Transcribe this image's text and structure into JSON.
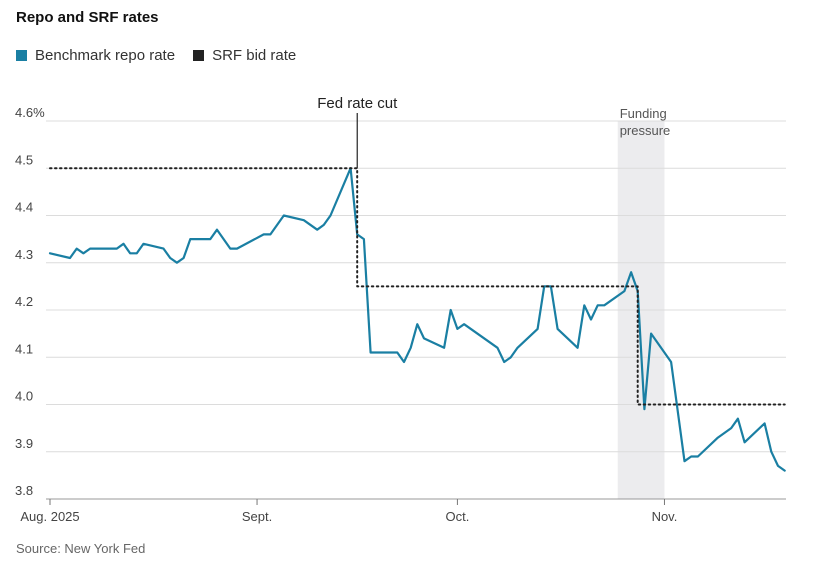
{
  "chart_data": {
    "type": "line",
    "title": "Repo and SRF rates",
    "legend": [
      {
        "name": "Benchmark repo rate",
        "color": "#1a7fa3"
      },
      {
        "name": "SRF bid rate",
        "color": "#222222"
      }
    ],
    "source": "Source: New York Fed",
    "ylim": [
      3.8,
      4.6
    ],
    "yticks": [
      {
        "value": 4.6,
        "label": "4.6%"
      },
      {
        "value": 4.5,
        "label": "4.5"
      },
      {
        "value": 4.4,
        "label": "4.4"
      },
      {
        "value": 4.3,
        "label": "4.3"
      },
      {
        "value": 4.2,
        "label": "4.2"
      },
      {
        "value": 4.1,
        "label": "4.1"
      },
      {
        "value": 4.0,
        "label": "4.0"
      },
      {
        "value": 3.9,
        "label": "3.9"
      },
      {
        "value": 3.8,
        "label": "3.8"
      }
    ],
    "xlim": [
      0,
      109
    ],
    "xticks": [
      {
        "day": 0,
        "label": "Aug. 2025"
      },
      {
        "day": 31,
        "label": "Sept."
      },
      {
        "day": 61,
        "label": "Oct."
      },
      {
        "day": 92,
        "label": "Nov."
      }
    ],
    "x_unit": "days since Aug. 1, 2025",
    "series": [
      {
        "name": "Benchmark repo rate",
        "color": "#1a7fa3",
        "points": [
          [
            0,
            4.32
          ],
          [
            3,
            4.31
          ],
          [
            4,
            4.33
          ],
          [
            5,
            4.32
          ],
          [
            6,
            4.33
          ],
          [
            10,
            4.33
          ],
          [
            11,
            4.34
          ],
          [
            12,
            4.32
          ],
          [
            13,
            4.32
          ],
          [
            14,
            4.34
          ],
          [
            17,
            4.33
          ],
          [
            18,
            4.31
          ],
          [
            19,
            4.3
          ],
          [
            20,
            4.31
          ],
          [
            21,
            4.35
          ],
          [
            24,
            4.35
          ],
          [
            25,
            4.37
          ],
          [
            27,
            4.33
          ],
          [
            28,
            4.33
          ],
          [
            32,
            4.36
          ],
          [
            33,
            4.36
          ],
          [
            35,
            4.4
          ],
          [
            38,
            4.39
          ],
          [
            40,
            4.37
          ],
          [
            41,
            4.38
          ],
          [
            42,
            4.4
          ],
          [
            45,
            4.5
          ],
          [
            46,
            4.36
          ],
          [
            47,
            4.35
          ],
          [
            48,
            4.11
          ],
          [
            52,
            4.11
          ],
          [
            53,
            4.09
          ],
          [
            54,
            4.12
          ],
          [
            55,
            4.17
          ],
          [
            56,
            4.14
          ],
          [
            59,
            4.12
          ],
          [
            60,
            4.2
          ],
          [
            61,
            4.16
          ],
          [
            62,
            4.17
          ],
          [
            67,
            4.12
          ],
          [
            68,
            4.09
          ],
          [
            69,
            4.1
          ],
          [
            70,
            4.12
          ],
          [
            73,
            4.16
          ],
          [
            74,
            4.25
          ],
          [
            75,
            4.25
          ],
          [
            76,
            4.16
          ],
          [
            79,
            4.12
          ],
          [
            80,
            4.21
          ],
          [
            81,
            4.18
          ],
          [
            82,
            4.21
          ],
          [
            83,
            4.21
          ],
          [
            86,
            4.24
          ],
          [
            87,
            4.28
          ],
          [
            88,
            4.24
          ],
          [
            89,
            3.99
          ],
          [
            90,
            4.15
          ],
          [
            93,
            4.09
          ],
          [
            95,
            3.88
          ],
          [
            96,
            3.89
          ],
          [
            97,
            3.89
          ],
          [
            100,
            3.93
          ],
          [
            102,
            3.95
          ],
          [
            103,
            3.97
          ],
          [
            104,
            3.92
          ],
          [
            107,
            3.96
          ],
          [
            108,
            3.9
          ],
          [
            109,
            3.87
          ],
          [
            110,
            3.86
          ]
        ]
      },
      {
        "name": "SRF bid rate",
        "color": "#222222",
        "style": "dotted",
        "points": [
          [
            0,
            4.5
          ],
          [
            46,
            4.5
          ],
          [
            46,
            4.25
          ],
          [
            88,
            4.25
          ],
          [
            88,
            4.0
          ],
          [
            110,
            4.0
          ]
        ]
      }
    ],
    "annotations": [
      {
        "type": "vline",
        "day": 46,
        "label": "Fed rate cut"
      },
      {
        "type": "band",
        "from": 85,
        "to": 92,
        "label_lines": [
          "Funding",
          "pressure"
        ]
      }
    ]
  }
}
